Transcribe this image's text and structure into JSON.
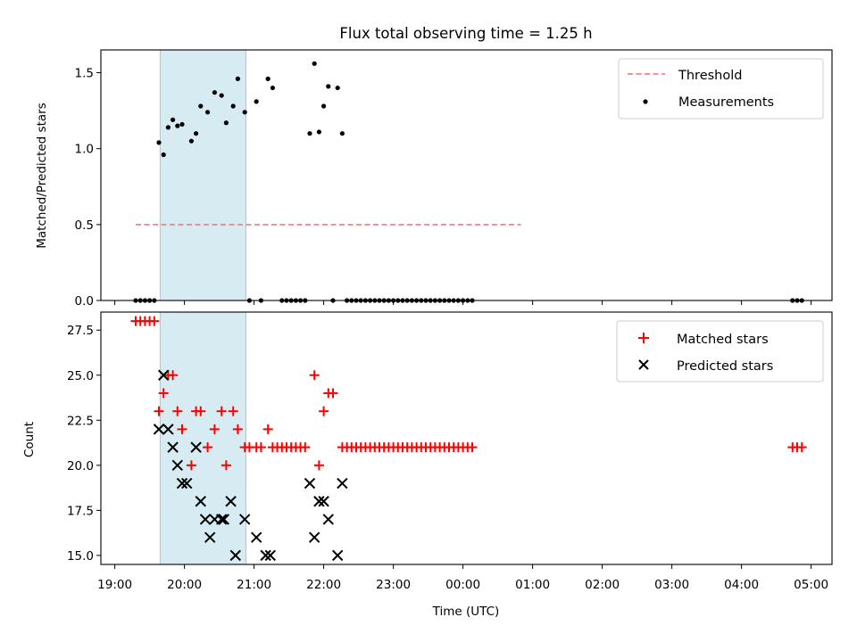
{
  "chart_data": [
    {
      "type": "scatter",
      "title": "Flux total observing time = 1.25 h",
      "xlabel": "",
      "ylabel": "Matched/Predicted stars",
      "ylim": [
        0,
        1.65
      ],
      "y_ticks": [
        "0.0",
        "0.5",
        "1.0",
        "1.5"
      ],
      "shaded_span": [
        "19:39",
        "20:53"
      ],
      "legend_position": "top-right",
      "series": [
        {
          "name": "Threshold",
          "kind": "dashed-line",
          "color": "#ff7f7f",
          "x": [
            "19:18",
            "24:50"
          ],
          "y": [
            0.5,
            0.5
          ]
        },
        {
          "name": "Measurements",
          "kind": "points",
          "color": "#000000",
          "points": [
            [
              "19:18",
              0
            ],
            [
              "19:22",
              0
            ],
            [
              "19:26",
              0
            ],
            [
              "19:30",
              0
            ],
            [
              "19:34",
              0
            ],
            [
              "19:38",
              1.04
            ],
            [
              "19:42",
              0.96
            ],
            [
              "19:46",
              1.14
            ],
            [
              "19:50",
              1.19
            ],
            [
              "19:54",
              1.15
            ],
            [
              "19:58",
              1.16
            ],
            [
              "20:06",
              1.05
            ],
            [
              "20:10",
              1.1
            ],
            [
              "20:14",
              1.28
            ],
            [
              "20:20",
              1.24
            ],
            [
              "20:26",
              1.37
            ],
            [
              "20:32",
              1.35
            ],
            [
              "20:36",
              1.17
            ],
            [
              "20:42",
              1.28
            ],
            [
              "20:46",
              1.46
            ],
            [
              "20:52",
              1.24
            ],
            [
              "20:56",
              0
            ],
            [
              "21:02",
              1.31
            ],
            [
              "21:06",
              0
            ],
            [
              "21:12",
              1.46
            ],
            [
              "21:16",
              1.4
            ],
            [
              "21:24",
              0
            ],
            [
              "21:28",
              0
            ],
            [
              "21:32",
              0
            ],
            [
              "21:36",
              0
            ],
            [
              "21:40",
              0
            ],
            [
              "21:44",
              0
            ],
            [
              "21:48",
              1.1
            ],
            [
              "21:52",
              1.56
            ],
            [
              "21:56",
              1.11
            ],
            [
              "22:00",
              1.28
            ],
            [
              "22:04",
              1.41
            ],
            [
              "22:08",
              0
            ],
            [
              "22:12",
              1.4
            ],
            [
              "22:16",
              1.1
            ],
            [
              "22:20",
              0
            ],
            [
              "22:24",
              0
            ],
            [
              "22:28",
              0
            ],
            [
              "22:32",
              0
            ],
            [
              "22:36",
              0
            ],
            [
              "22:40",
              0
            ],
            [
              "22:44",
              0
            ],
            [
              "22:48",
              0
            ],
            [
              "22:52",
              0
            ],
            [
              "22:56",
              0
            ],
            [
              "23:00",
              0
            ],
            [
              "23:04",
              0
            ],
            [
              "23:08",
              0
            ],
            [
              "23:12",
              0
            ],
            [
              "23:16",
              0
            ],
            [
              "23:20",
              0
            ],
            [
              "23:24",
              0
            ],
            [
              "23:28",
              0
            ],
            [
              "23:32",
              0
            ],
            [
              "23:36",
              0
            ],
            [
              "23:40",
              0
            ],
            [
              "23:44",
              0
            ],
            [
              "23:48",
              0
            ],
            [
              "23:52",
              0
            ],
            [
              "23:56",
              0
            ],
            [
              "24:00",
              0
            ],
            [
              "24:04",
              0
            ],
            [
              "24:08",
              0
            ],
            [
              "28:44",
              0
            ],
            [
              "28:48",
              0
            ],
            [
              "28:52",
              0
            ]
          ]
        }
      ]
    },
    {
      "type": "scatter",
      "title": "",
      "xlabel": "Time (UTC)",
      "ylabel": "Count",
      "ylim": [
        14.5,
        28.5
      ],
      "y_ticks": [
        "15.0",
        "17.5",
        "20.0",
        "22.5",
        "25.0",
        "27.5"
      ],
      "x_range": [
        "18:48",
        "29:18"
      ],
      "x_ticks": [
        "19:00",
        "20:00",
        "21:00",
        "22:00",
        "23:00",
        "00:00",
        "01:00",
        "02:00",
        "03:00",
        "04:00",
        "05:00"
      ],
      "shaded_span": [
        "19:39",
        "20:53"
      ],
      "legend_position": "top-right",
      "series": [
        {
          "name": "Matched stars",
          "marker": "plus",
          "color": "#ff0000",
          "points": [
            [
              "19:18",
              28
            ],
            [
              "19:22",
              28
            ],
            [
              "19:26",
              28
            ],
            [
              "19:30",
              28
            ],
            [
              "19:34",
              28
            ],
            [
              "19:38",
              23
            ],
            [
              "19:42",
              24
            ],
            [
              "19:46",
              25
            ],
            [
              "19:50",
              25
            ],
            [
              "19:54",
              23
            ],
            [
              "19:58",
              22
            ],
            [
              "20:06",
              20
            ],
            [
              "20:10",
              23
            ],
            [
              "20:14",
              23
            ],
            [
              "20:20",
              21
            ],
            [
              "20:26",
              22
            ],
            [
              "20:32",
              23
            ],
            [
              "20:36",
              20
            ],
            [
              "20:42",
              23
            ],
            [
              "20:46",
              22
            ],
            [
              "20:52",
              21
            ],
            [
              "20:56",
              21
            ],
            [
              "21:02",
              21
            ],
            [
              "21:06",
              21
            ],
            [
              "21:12",
              22
            ],
            [
              "21:16",
              21
            ],
            [
              "21:20",
              21
            ],
            [
              "21:24",
              21
            ],
            [
              "21:28",
              21
            ],
            [
              "21:32",
              21
            ],
            [
              "21:36",
              21
            ],
            [
              "21:40",
              21
            ],
            [
              "21:44",
              21
            ],
            [
              "21:52",
              25
            ],
            [
              "21:56",
              20
            ],
            [
              "22:00",
              23
            ],
            [
              "22:04",
              24
            ],
            [
              "22:08",
              24
            ],
            [
              "22:16",
              21
            ],
            [
              "22:20",
              21
            ],
            [
              "22:24",
              21
            ],
            [
              "22:28",
              21
            ],
            [
              "22:32",
              21
            ],
            [
              "22:36",
              21
            ],
            [
              "22:40",
              21
            ],
            [
              "22:44",
              21
            ],
            [
              "22:48",
              21
            ],
            [
              "22:52",
              21
            ],
            [
              "22:56",
              21
            ],
            [
              "23:00",
              21
            ],
            [
              "23:04",
              21
            ],
            [
              "23:08",
              21
            ],
            [
              "23:12",
              21
            ],
            [
              "23:16",
              21
            ],
            [
              "23:20",
              21
            ],
            [
              "23:24",
              21
            ],
            [
              "23:28",
              21
            ],
            [
              "23:32",
              21
            ],
            [
              "23:36",
              21
            ],
            [
              "23:40",
              21
            ],
            [
              "23:44",
              21
            ],
            [
              "23:48",
              21
            ],
            [
              "23:52",
              21
            ],
            [
              "23:56",
              21
            ],
            [
              "24:00",
              21
            ],
            [
              "24:04",
              21
            ],
            [
              "24:08",
              21
            ],
            [
              "28:44",
              21
            ],
            [
              "28:48",
              21
            ],
            [
              "28:52",
              21
            ]
          ]
        },
        {
          "name": "Predicted stars",
          "marker": "x",
          "color": "#000000",
          "points": [
            [
              "19:38",
              22
            ],
            [
              "19:42",
              25
            ],
            [
              "19:46",
              22
            ],
            [
              "19:50",
              21
            ],
            [
              "19:54",
              20
            ],
            [
              "19:58",
              19
            ],
            [
              "20:02",
              19
            ],
            [
              "20:10",
              21
            ],
            [
              "20:14",
              18
            ],
            [
              "20:18",
              17
            ],
            [
              "20:22",
              16
            ],
            [
              "20:26",
              17
            ],
            [
              "20:32",
              17
            ],
            [
              "20:34",
              17
            ],
            [
              "20:40",
              18
            ],
            [
              "20:44",
              15
            ],
            [
              "20:52",
              17
            ],
            [
              "21:02",
              16
            ],
            [
              "21:10",
              15
            ],
            [
              "21:14",
              15
            ],
            [
              "21:48",
              19
            ],
            [
              "21:52",
              16
            ],
            [
              "21:56",
              18
            ],
            [
              "22:00",
              18
            ],
            [
              "22:04",
              17
            ],
            [
              "22:12",
              15
            ],
            [
              "22:16",
              19
            ]
          ]
        }
      ]
    }
  ]
}
